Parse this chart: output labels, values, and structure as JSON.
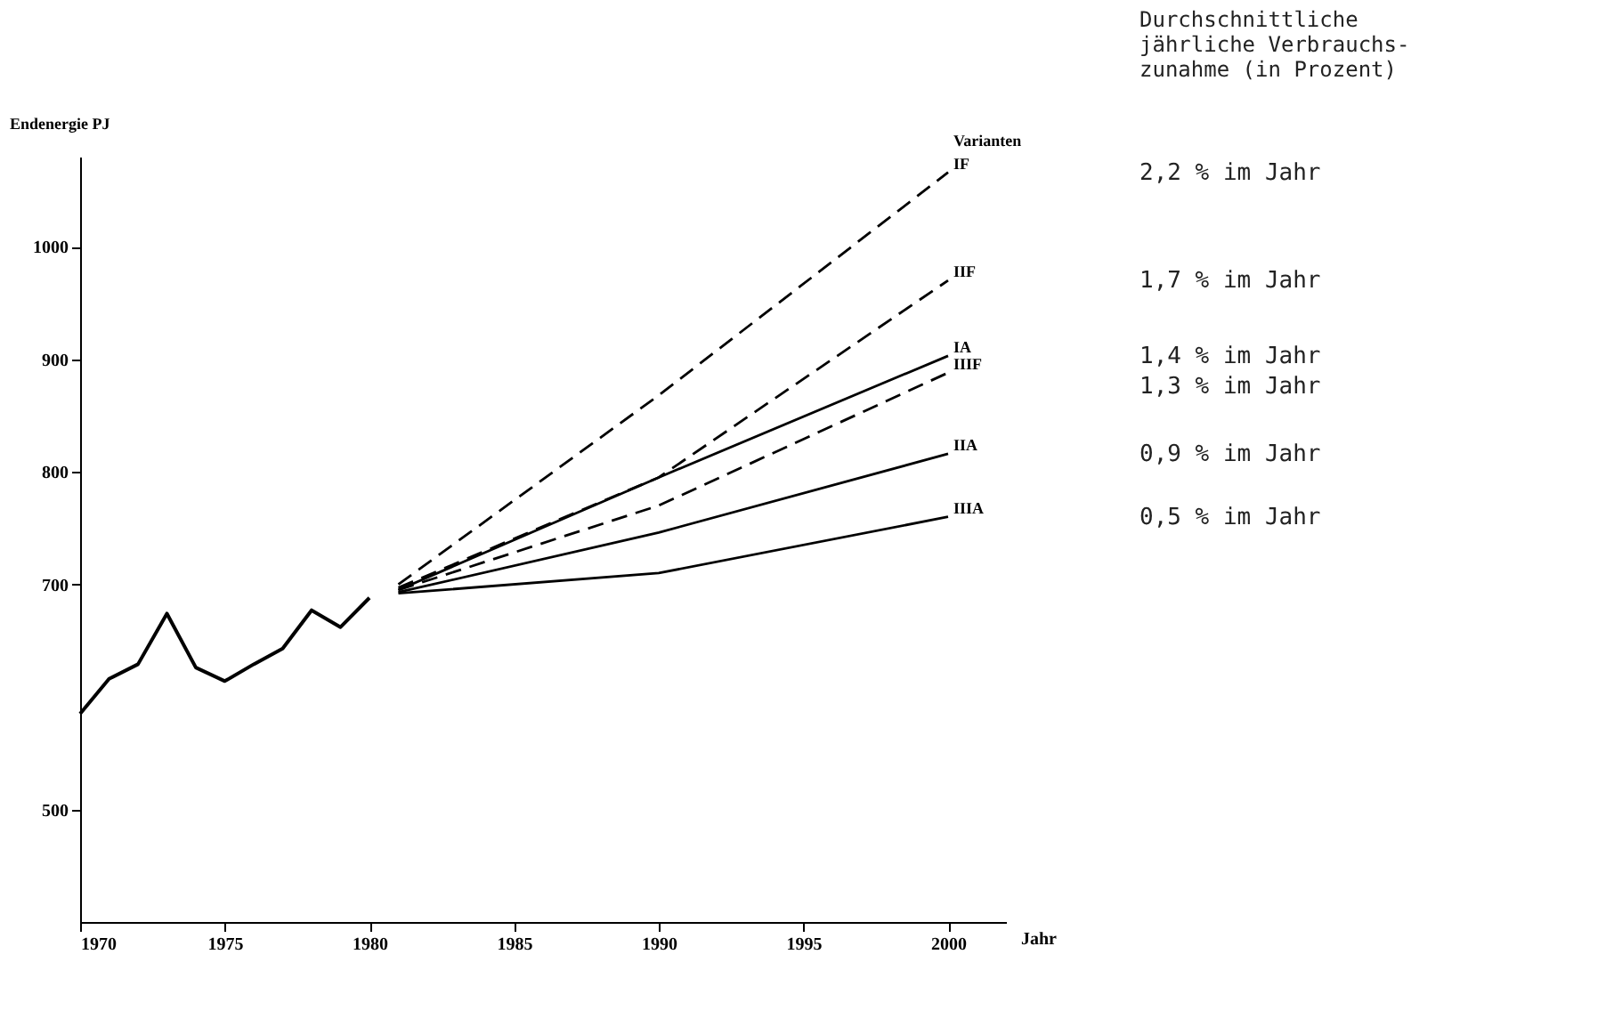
{
  "chart_data": {
    "type": "line",
    "xlabel": "Jahr",
    "ylabel": "Endenergie PJ",
    "legend_title": "Varianten",
    "xlim": [
      1970,
      2002
    ],
    "ylim": [
      400,
      1080
    ],
    "xticks": [
      1970,
      1975,
      1980,
      1985,
      1990,
      1995,
      2000
    ],
    "yticks": [
      500,
      700,
      800,
      900,
      1000
    ],
    "grid": false,
    "series": [
      {
        "color": "#000000",
        "line_style": "solid",
        "x": [
          1970,
          1971,
          1972,
          1973,
          1974,
          1975,
          1976,
          1977,
          1978,
          1979,
          1980
        ],
        "values": [
          585,
          616,
          629,
          674,
          626,
          614,
          629,
          643,
          677,
          662,
          688
        ]
      },
      {
        "name": "IF",
        "color": "#000000",
        "line_style": "dashed",
        "x": [
          1981,
          1990,
          2000
        ],
        "values": [
          700,
          868,
          1066
        ]
      },
      {
        "name": "IIF",
        "color": "#000000",
        "line_style": "dashed",
        "x": [
          1981,
          1990,
          2000
        ],
        "values": [
          697,
          795,
          970
        ]
      },
      {
        "name": "IA",
        "color": "#000000",
        "line_style": "solid",
        "x": [
          1981,
          1990,
          2000
        ],
        "values": [
          695,
          795,
          903
        ]
      },
      {
        "name": "IIIF",
        "color": "#000000",
        "line_style": "dashed",
        "x": [
          1981,
          1990,
          2000
        ],
        "values": [
          695,
          770,
          888
        ]
      },
      {
        "name": "IIA",
        "color": "#000000",
        "line_style": "solid",
        "x": [
          1981,
          1990,
          2000
        ],
        "values": [
          693,
          746,
          816
        ]
      },
      {
        "name": "IIIA",
        "color": "#000000",
        "line_style": "solid",
        "x": [
          1981,
          1990,
          2000
        ],
        "values": [
          692,
          710,
          760
        ]
      }
    ],
    "annotations": [
      "Durchschnittliche\njährliche Verbrauchs-\nzunahme (in Prozent)",
      "2,2 % im Jahr",
      "1,7 % im Jahr",
      "1,4 % im Jahr",
      "1,3 % im Jahr",
      "0,9 % im Jahr",
      "0,5 % im Jahr"
    ]
  }
}
